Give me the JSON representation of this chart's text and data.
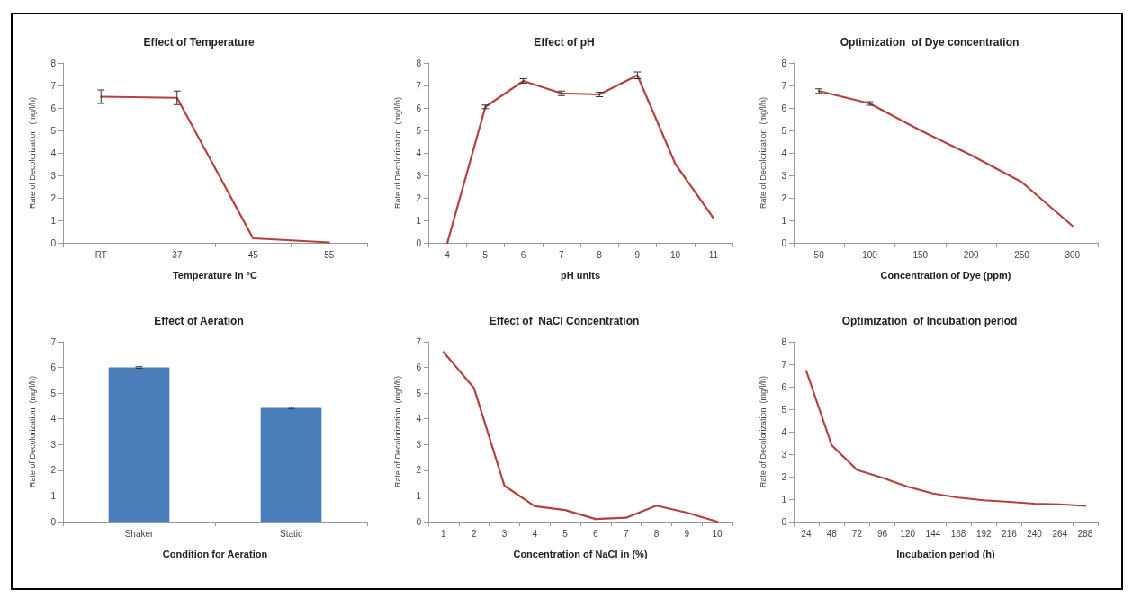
{
  "chart_data": [
    {
      "type": "line",
      "title": "Effect of Temperature",
      "xlabel": "Temperature in °C",
      "ylabel": "Rate of Decolorization  (mg/l/h)",
      "categories": [
        "RT",
        "37",
        "45",
        "55"
      ],
      "series": [
        {
          "color": "#b5413e",
          "values": [
            6.5,
            6.45,
            0.2,
            0.02
          ],
          "errors": [
            0.3,
            0.3,
            null,
            null
          ]
        }
      ],
      "ylim": [
        0,
        8
      ],
      "yticks": [
        0,
        1,
        2,
        3,
        4,
        5,
        6,
        7,
        8
      ],
      "grid": false,
      "marker": "none",
      "line_style": "solid"
    },
    {
      "type": "line",
      "title": "Effect of pH",
      "xlabel": "pH units",
      "ylabel": "Rate of Decolorization  (mg/l/h)",
      "categories": [
        "4",
        "5",
        "6",
        "7",
        "8",
        "9",
        "10",
        "11"
      ],
      "series": [
        {
          "color": "#b5413e",
          "values": [
            0,
            6.05,
            7.2,
            6.65,
            6.6,
            7.45,
            3.5,
            1.1
          ],
          "errors": [
            null,
            0.08,
            0.1,
            0.1,
            0.1,
            0.15,
            null,
            null
          ]
        }
      ],
      "ylim": [
        0,
        8
      ],
      "yticks": [
        0,
        1,
        2,
        3,
        4,
        5,
        6,
        7,
        8
      ],
      "grid": false,
      "marker": "none",
      "line_style": "solid"
    },
    {
      "type": "line",
      "title": "Optimization  of Dye concentration",
      "xlabel": "Concentration of Dye (ppm)",
      "ylabel": "Rate of Decolorization  (mg/l/h)",
      "categories": [
        "50",
        "100",
        "150",
        "200",
        "250",
        "300"
      ],
      "series": [
        {
          "color": "#b5413e",
          "values": [
            6.75,
            6.2,
            5.0,
            3.9,
            2.7,
            0.75
          ],
          "errors": [
            0.1,
            0.08,
            null,
            null,
            null,
            null
          ]
        }
      ],
      "ylim": [
        0,
        8
      ],
      "yticks": [
        0,
        1,
        2,
        3,
        4,
        5,
        6,
        7,
        8
      ],
      "grid": false,
      "marker": "none",
      "line_style": "solid"
    },
    {
      "type": "bar",
      "title": "Effect of Aeration",
      "xlabel": "Condition for Aeration",
      "ylabel": "Rate of Decolorization  (mg/l/h)",
      "categories": [
        "Shaker",
        "Static"
      ],
      "series": [
        {
          "color": "#4a7ebb",
          "values": [
            6.0,
            4.43
          ],
          "errors": [
            0.03,
            0.03
          ]
        }
      ],
      "ylim": [
        0,
        7
      ],
      "yticks": [
        0,
        1,
        2,
        3,
        4,
        5,
        6,
        7
      ],
      "grid": false
    },
    {
      "type": "line",
      "title": "Effect of  NaCl Concentration",
      "xlabel": "Concentration of NaCl in (%)",
      "ylabel": "Rate of Decolorization  (mg/l/h)",
      "categories": [
        "1",
        "2",
        "3",
        "4",
        "5",
        "6",
        "7",
        "8",
        "9",
        "10"
      ],
      "series": [
        {
          "color": "#b5413e",
          "values": [
            6.6,
            5.2,
            1.4,
            0.6,
            0.45,
            0.1,
            0.15,
            0.62,
            0.35,
            0.0
          ]
        }
      ],
      "ylim": [
        0,
        7
      ],
      "yticks": [
        0,
        1,
        2,
        3,
        4,
        5,
        6,
        7
      ],
      "grid": false,
      "marker": "none",
      "line_style": "solid"
    },
    {
      "type": "line",
      "title": "Optimization  of Incubation period",
      "xlabel": "Incubation period (h)",
      "ylabel": "Rate of Decolorization  (mg/l/h)",
      "categories": [
        "24",
        "48",
        "72",
        "96",
        "120",
        "144",
        "168",
        "192",
        "216",
        "240",
        "264",
        "288"
      ],
      "series": [
        {
          "color": "#b5413e",
          "values": [
            6.7,
            3.4,
            2.3,
            1.95,
            1.55,
            1.25,
            1.07,
            0.95,
            0.88,
            0.8,
            0.77,
            0.7
          ]
        }
      ],
      "ylim": [
        0,
        8
      ],
      "yticks": [
        0,
        1,
        2,
        3,
        4,
        5,
        6,
        7,
        8
      ],
      "grid": false,
      "marker": "none",
      "line_style": "solid"
    }
  ]
}
